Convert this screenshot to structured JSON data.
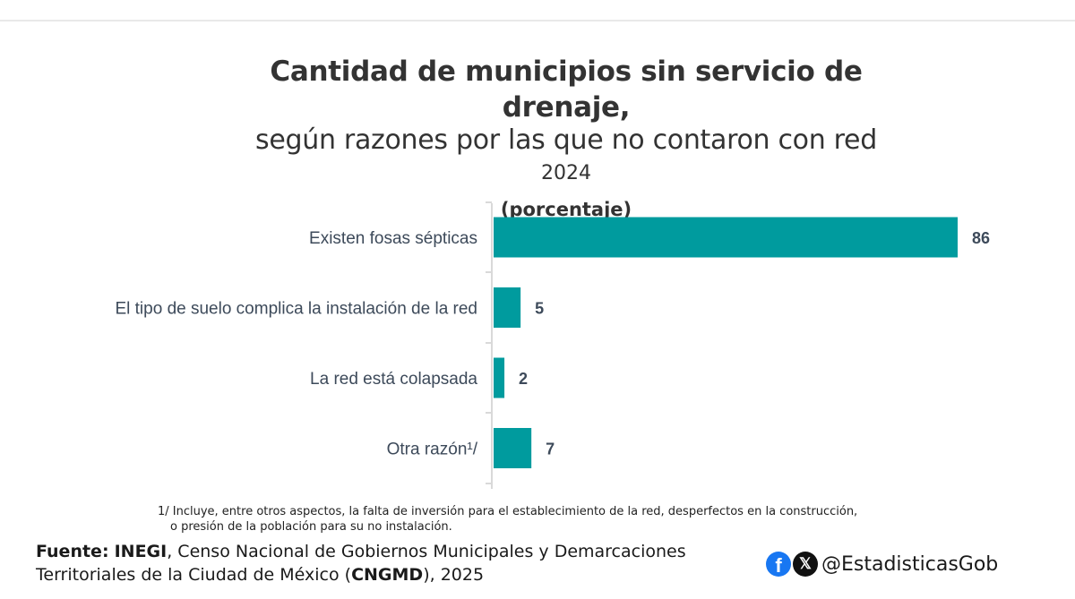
{
  "header": {
    "title": "Cantidad de municipios sin servicio de drenaje,",
    "subtitle": "según razones por las que no contaron con red",
    "year": "2024",
    "unit": "(porcentaje)"
  },
  "chart_data": {
    "type": "bar",
    "orientation": "horizontal",
    "categories": [
      "Existen fosas sépticas",
      "El tipo de suelo complica la instalación de la red",
      "La red está colapsada",
      "Otra razón¹/"
    ],
    "values": [
      86,
      5,
      2,
      7
    ],
    "data_labels": [
      "86",
      "5",
      "2",
      "7"
    ],
    "xlim": [
      0,
      86
    ],
    "bar_color": "#009b9e",
    "label_color": "#3d4a5a",
    "grid": false,
    "legend": "none"
  },
  "footnote": {
    "line1": "1/ Incluye, entre otros aspectos, la falta de inversión para el establecimiento de la red, desperfectos en la construcción,",
    "line2": "o presión de la población para su no instalación."
  },
  "source": {
    "label": "Fuente:",
    "org": "INEGI",
    "text1": ", Censo Nacional de Gobiernos Municipales y Demarcaciones",
    "text2": "Territoriales de la Ciudad de México (",
    "acronym": "CNGMD",
    "text3": "), 2025"
  },
  "social": {
    "facebook_icon": "facebook-icon",
    "x_icon": "x-twitter-icon",
    "handle": "@EstadisticasGob"
  }
}
